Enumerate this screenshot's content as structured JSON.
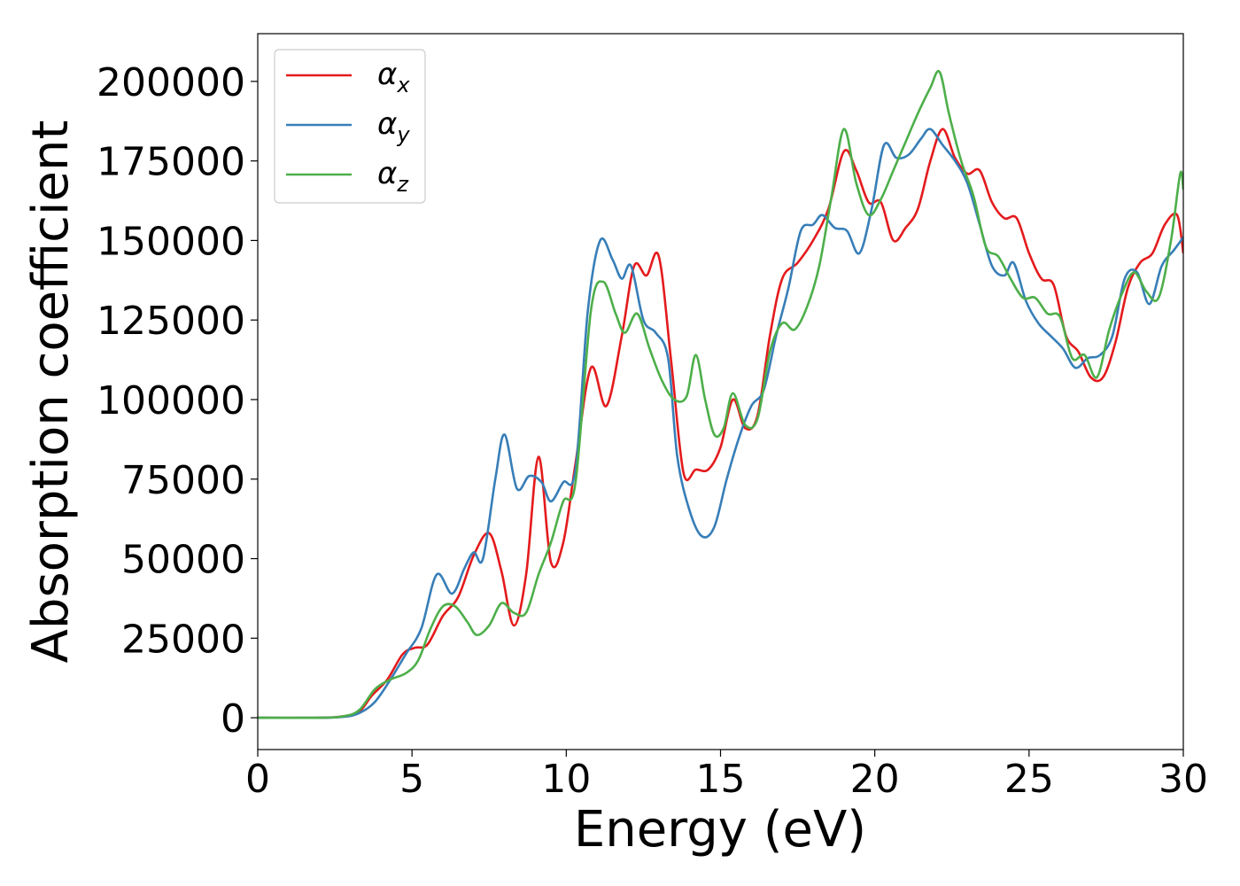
{
  "chart_data": {
    "type": "line",
    "xlabel": "Energy (eV)",
    "ylabel": "Absorption coefficient",
    "xlim": [
      0,
      30
    ],
    "ylim": [
      -10000,
      215000
    ],
    "x_ticks": [
      0,
      5,
      10,
      15,
      20,
      25,
      30
    ],
    "y_ticks": [
      0,
      25000,
      50000,
      75000,
      100000,
      125000,
      150000,
      175000,
      200000
    ],
    "x_tick_labels": [
      "0",
      "5",
      "10",
      "15",
      "20",
      "25",
      "30"
    ],
    "y_tick_labels": [
      "0",
      "25000",
      "50000",
      "75000",
      "100000",
      "125000",
      "150000",
      "175000",
      "200000"
    ],
    "grid": false,
    "legend_position": "top-left",
    "series": [
      {
        "name": "α_x",
        "label_base": "α",
        "label_sub": "x",
        "color": "#e41a1c",
        "points": [
          [
            0,
            0
          ],
          [
            2,
            0
          ],
          [
            2.8,
            500
          ],
          [
            3.3,
            2000
          ],
          [
            3.7,
            7000
          ],
          [
            4.2,
            12000
          ],
          [
            4.7,
            20000
          ],
          [
            5.1,
            22000
          ],
          [
            5.5,
            23000
          ],
          [
            6.0,
            32000
          ],
          [
            6.5,
            38000
          ],
          [
            7.0,
            51000
          ],
          [
            7.5,
            58000
          ],
          [
            7.9,
            46000
          ],
          [
            8.3,
            29000
          ],
          [
            8.7,
            45000
          ],
          [
            9.1,
            82000
          ],
          [
            9.5,
            49000
          ],
          [
            9.9,
            55000
          ],
          [
            10.3,
            80000
          ],
          [
            10.8,
            110000
          ],
          [
            11.3,
            98000
          ],
          [
            11.8,
            120000
          ],
          [
            12.2,
            142000
          ],
          [
            12.6,
            139000
          ],
          [
            13.0,
            145000
          ],
          [
            13.4,
            112000
          ],
          [
            13.8,
            77000
          ],
          [
            14.2,
            78000
          ],
          [
            14.6,
            78000
          ],
          [
            15.0,
            85000
          ],
          [
            15.4,
            100000
          ],
          [
            15.8,
            91000
          ],
          [
            16.2,
            95000
          ],
          [
            16.6,
            120000
          ],
          [
            17.0,
            138000
          ],
          [
            17.5,
            143000
          ],
          [
            18.0,
            150000
          ],
          [
            18.5,
            160000
          ],
          [
            19.0,
            178000
          ],
          [
            19.4,
            172000
          ],
          [
            19.8,
            162000
          ],
          [
            20.2,
            162000
          ],
          [
            20.6,
            150000
          ],
          [
            21.0,
            154000
          ],
          [
            21.4,
            160000
          ],
          [
            21.8,
            175000
          ],
          [
            22.2,
            185000
          ],
          [
            22.6,
            176000
          ],
          [
            23.0,
            171000
          ],
          [
            23.4,
            172000
          ],
          [
            23.8,
            162000
          ],
          [
            24.2,
            157000
          ],
          [
            24.6,
            157000
          ],
          [
            25.0,
            146000
          ],
          [
            25.4,
            138000
          ],
          [
            25.8,
            136000
          ],
          [
            26.2,
            120000
          ],
          [
            26.6,
            115000
          ],
          [
            27.0,
            107000
          ],
          [
            27.4,
            107000
          ],
          [
            27.8,
            118000
          ],
          [
            28.2,
            135000
          ],
          [
            28.6,
            143000
          ],
          [
            29.0,
            146000
          ],
          [
            29.4,
            155000
          ],
          [
            29.8,
            158000
          ],
          [
            30.0,
            146000
          ]
        ]
      },
      {
        "name": "α_y",
        "label_base": "α",
        "label_sub": "y",
        "color": "#377eb8",
        "points": [
          [
            0,
            0
          ],
          [
            2,
            0
          ],
          [
            2.8,
            300
          ],
          [
            3.3,
            1500
          ],
          [
            3.8,
            5000
          ],
          [
            4.3,
            12000
          ],
          [
            4.8,
            20000
          ],
          [
            5.3,
            28000
          ],
          [
            5.8,
            45000
          ],
          [
            6.3,
            39000
          ],
          [
            6.7,
            47000
          ],
          [
            7.0,
            52000
          ],
          [
            7.3,
            50000
          ],
          [
            7.7,
            75000
          ],
          [
            8.0,
            89000
          ],
          [
            8.4,
            72000
          ],
          [
            8.8,
            76000
          ],
          [
            9.2,
            74000
          ],
          [
            9.5,
            68000
          ],
          [
            9.9,
            74000
          ],
          [
            10.3,
            78000
          ],
          [
            10.7,
            128000
          ],
          [
            11.1,
            150000
          ],
          [
            11.5,
            144000
          ],
          [
            11.8,
            138000
          ],
          [
            12.1,
            142000
          ],
          [
            12.5,
            125000
          ],
          [
            12.9,
            121000
          ],
          [
            13.3,
            113000
          ],
          [
            13.6,
            82000
          ],
          [
            14.0,
            65000
          ],
          [
            14.4,
            57000
          ],
          [
            14.8,
            60000
          ],
          [
            15.2,
            75000
          ],
          [
            15.6,
            88000
          ],
          [
            16.0,
            98000
          ],
          [
            16.4,
            103000
          ],
          [
            16.8,
            120000
          ],
          [
            17.2,
            135000
          ],
          [
            17.6,
            153000
          ],
          [
            18.0,
            155000
          ],
          [
            18.3,
            158000
          ],
          [
            18.7,
            154000
          ],
          [
            19.1,
            153000
          ],
          [
            19.5,
            146000
          ],
          [
            19.9,
            160000
          ],
          [
            20.3,
            180000
          ],
          [
            20.7,
            176000
          ],
          [
            21.1,
            177000
          ],
          [
            21.5,
            182000
          ],
          [
            21.8,
            185000
          ],
          [
            22.2,
            180000
          ],
          [
            22.6,
            175000
          ],
          [
            23.0,
            168000
          ],
          [
            23.4,
            155000
          ],
          [
            23.8,
            142000
          ],
          [
            24.2,
            139000
          ],
          [
            24.5,
            143000
          ],
          [
            24.9,
            131000
          ],
          [
            25.3,
            124000
          ],
          [
            25.7,
            120000
          ],
          [
            26.1,
            116000
          ],
          [
            26.5,
            110000
          ],
          [
            26.9,
            113000
          ],
          [
            27.3,
            114000
          ],
          [
            27.7,
            120000
          ],
          [
            28.1,
            138000
          ],
          [
            28.5,
            140000
          ],
          [
            28.9,
            130000
          ],
          [
            29.3,
            142000
          ],
          [
            29.7,
            147000
          ],
          [
            30.0,
            151000
          ]
        ]
      },
      {
        "name": "α_z",
        "label_base": "α",
        "label_sub": "z",
        "color": "#4daf4a",
        "points": [
          [
            0,
            0
          ],
          [
            2,
            0
          ],
          [
            2.8,
            500
          ],
          [
            3.3,
            2500
          ],
          [
            3.8,
            9000
          ],
          [
            4.3,
            12000
          ],
          [
            4.8,
            14000
          ],
          [
            5.2,
            18000
          ],
          [
            5.6,
            28000
          ],
          [
            6.0,
            35000
          ],
          [
            6.4,
            35000
          ],
          [
            6.8,
            30000
          ],
          [
            7.1,
            26000
          ],
          [
            7.5,
            29000
          ],
          [
            7.9,
            36000
          ],
          [
            8.3,
            33000
          ],
          [
            8.7,
            33000
          ],
          [
            9.1,
            45000
          ],
          [
            9.5,
            55000
          ],
          [
            9.9,
            68000
          ],
          [
            10.3,
            74000
          ],
          [
            10.8,
            128000
          ],
          [
            11.2,
            137000
          ],
          [
            11.6,
            127000
          ],
          [
            11.9,
            121000
          ],
          [
            12.3,
            127000
          ],
          [
            12.7,
            116000
          ],
          [
            13.1,
            106000
          ],
          [
            13.5,
            100000
          ],
          [
            13.9,
            101000
          ],
          [
            14.2,
            114000
          ],
          [
            14.5,
            100000
          ],
          [
            14.8,
            89000
          ],
          [
            15.1,
            91000
          ],
          [
            15.4,
            102000
          ],
          [
            15.8,
            92000
          ],
          [
            16.2,
            94000
          ],
          [
            16.6,
            115000
          ],
          [
            17.0,
            124000
          ],
          [
            17.4,
            122000
          ],
          [
            17.8,
            129000
          ],
          [
            18.2,
            142000
          ],
          [
            18.6,
            164000
          ],
          [
            19.0,
            185000
          ],
          [
            19.4,
            168000
          ],
          [
            19.8,
            158000
          ],
          [
            20.2,
            163000
          ],
          [
            20.6,
            172000
          ],
          [
            21.0,
            181000
          ],
          [
            21.4,
            190000
          ],
          [
            21.8,
            198000
          ],
          [
            22.1,
            203000
          ],
          [
            22.4,
            190000
          ],
          [
            22.8,
            175000
          ],
          [
            23.2,
            164000
          ],
          [
            23.6,
            148000
          ],
          [
            24.0,
            145000
          ],
          [
            24.4,
            138000
          ],
          [
            24.8,
            132000
          ],
          [
            25.2,
            132000
          ],
          [
            25.6,
            127000
          ],
          [
            26.0,
            126000
          ],
          [
            26.4,
            113000
          ],
          [
            26.8,
            114000
          ],
          [
            27.2,
            107000
          ],
          [
            27.6,
            122000
          ],
          [
            28.0,
            133000
          ],
          [
            28.4,
            140000
          ],
          [
            28.8,
            134000
          ],
          [
            29.2,
            132000
          ],
          [
            29.6,
            150000
          ],
          [
            29.9,
            171000
          ],
          [
            30.0,
            166000
          ]
        ]
      }
    ]
  }
}
